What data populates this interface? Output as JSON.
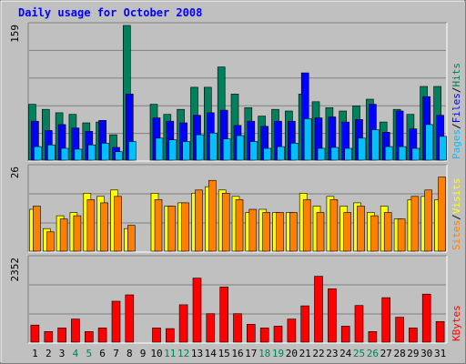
{
  "title": "Daily usage for October 2008",
  "colors": {
    "background": "#c0c0c0",
    "frame_light": "#ffffff",
    "frame_dark": "#808080",
    "title": "#0000ff",
    "hits": "#00805c",
    "files": "#0000ff",
    "pages": "#00c0ff",
    "visits": "#ffff00",
    "sites": "#ff8000",
    "kbytes": "#ff0000",
    "weekday_label": "#000000",
    "weekend_label": "#00805c"
  },
  "chart_data": [
    {
      "type": "bar",
      "panel": "hits-files-pages",
      "ymax_label": "159",
      "ylim": [
        0,
        159
      ],
      "legend": [
        "Pages",
        "Files",
        "Hits"
      ],
      "series": [
        {
          "name": "Hits",
          "color_key": "hits",
          "values": [
            66,
            60,
            56,
            54,
            44,
            45,
            30,
            159,
            0,
            66,
            54,
            60,
            86,
            86,
            110,
            78,
            62,
            52,
            60,
            58,
            78,
            69,
            62,
            58,
            64,
            72,
            45,
            60,
            54,
            87,
            87
          ]
        },
        {
          "name": "Files",
          "color_key": "files",
          "values": [
            46,
            35,
            42,
            38,
            34,
            47,
            15,
            78,
            0,
            50,
            46,
            44,
            53,
            56,
            59,
            41,
            46,
            40,
            46,
            46,
            103,
            50,
            51,
            45,
            48,
            66,
            33,
            58,
            37,
            75,
            53
          ]
        },
        {
          "name": "Pages",
          "color_key": "pages",
          "values": [
            16,
            18,
            14,
            13,
            18,
            20,
            10,
            22,
            0,
            26,
            24,
            22,
            30,
            32,
            25,
            29,
            22,
            14,
            16,
            20,
            49,
            14,
            15,
            14,
            26,
            36,
            16,
            16,
            14,
            42,
            28
          ]
        }
      ]
    },
    {
      "type": "bar",
      "panel": "visits-sites",
      "ymax_label": "26",
      "ylim": [
        0,
        26
      ],
      "legend": [
        "Sites",
        "Visits"
      ],
      "series": [
        {
          "name": "Visits",
          "color_key": "visits",
          "values": [
            13,
            7,
            11,
            12,
            18,
            17,
            19,
            7,
            0,
            18,
            14,
            15,
            18,
            20,
            19,
            17,
            12,
            13,
            12,
            12,
            18,
            14,
            17,
            14,
            15,
            12,
            14,
            10,
            16,
            17,
            16
          ]
        },
        {
          "name": "Sites",
          "color_key": "sites",
          "values": [
            14,
            6,
            10,
            11,
            16,
            15,
            17,
            8,
            0,
            16,
            14,
            15,
            19,
            22,
            18,
            16,
            13,
            12,
            12,
            12,
            16,
            12,
            16,
            12,
            14,
            11,
            12,
            10,
            17,
            19,
            23
          ]
        }
      ]
    },
    {
      "type": "bar",
      "panel": "kbytes",
      "ymax_label": "2352",
      "ylim": [
        0,
        2352
      ],
      "legend": [
        "KBytes"
      ],
      "series": [
        {
          "name": "KBytes",
          "color_key": "kbytes",
          "values": [
            480,
            300,
            400,
            650,
            300,
            400,
            1150,
            1330,
            0,
            400,
            380,
            1050,
            1800,
            800,
            1550,
            800,
            500,
            400,
            450,
            650,
            1020,
            1850,
            1500,
            450,
            1030,
            300,
            1250,
            700,
            400,
            1350,
            580
          ]
        }
      ]
    }
  ],
  "x_axis": {
    "labels": [
      "1",
      "2",
      "3",
      "4",
      "5",
      "6",
      "7",
      "8",
      "9",
      "10",
      "11",
      "12",
      "13",
      "14",
      "15",
      "16",
      "17",
      "18",
      "19",
      "20",
      "21",
      "22",
      "23",
      "24",
      "25",
      "26",
      "27",
      "28",
      "29",
      "30",
      "31"
    ],
    "weekend_days": [
      4,
      5,
      11,
      12,
      18,
      19,
      25,
      26
    ]
  }
}
